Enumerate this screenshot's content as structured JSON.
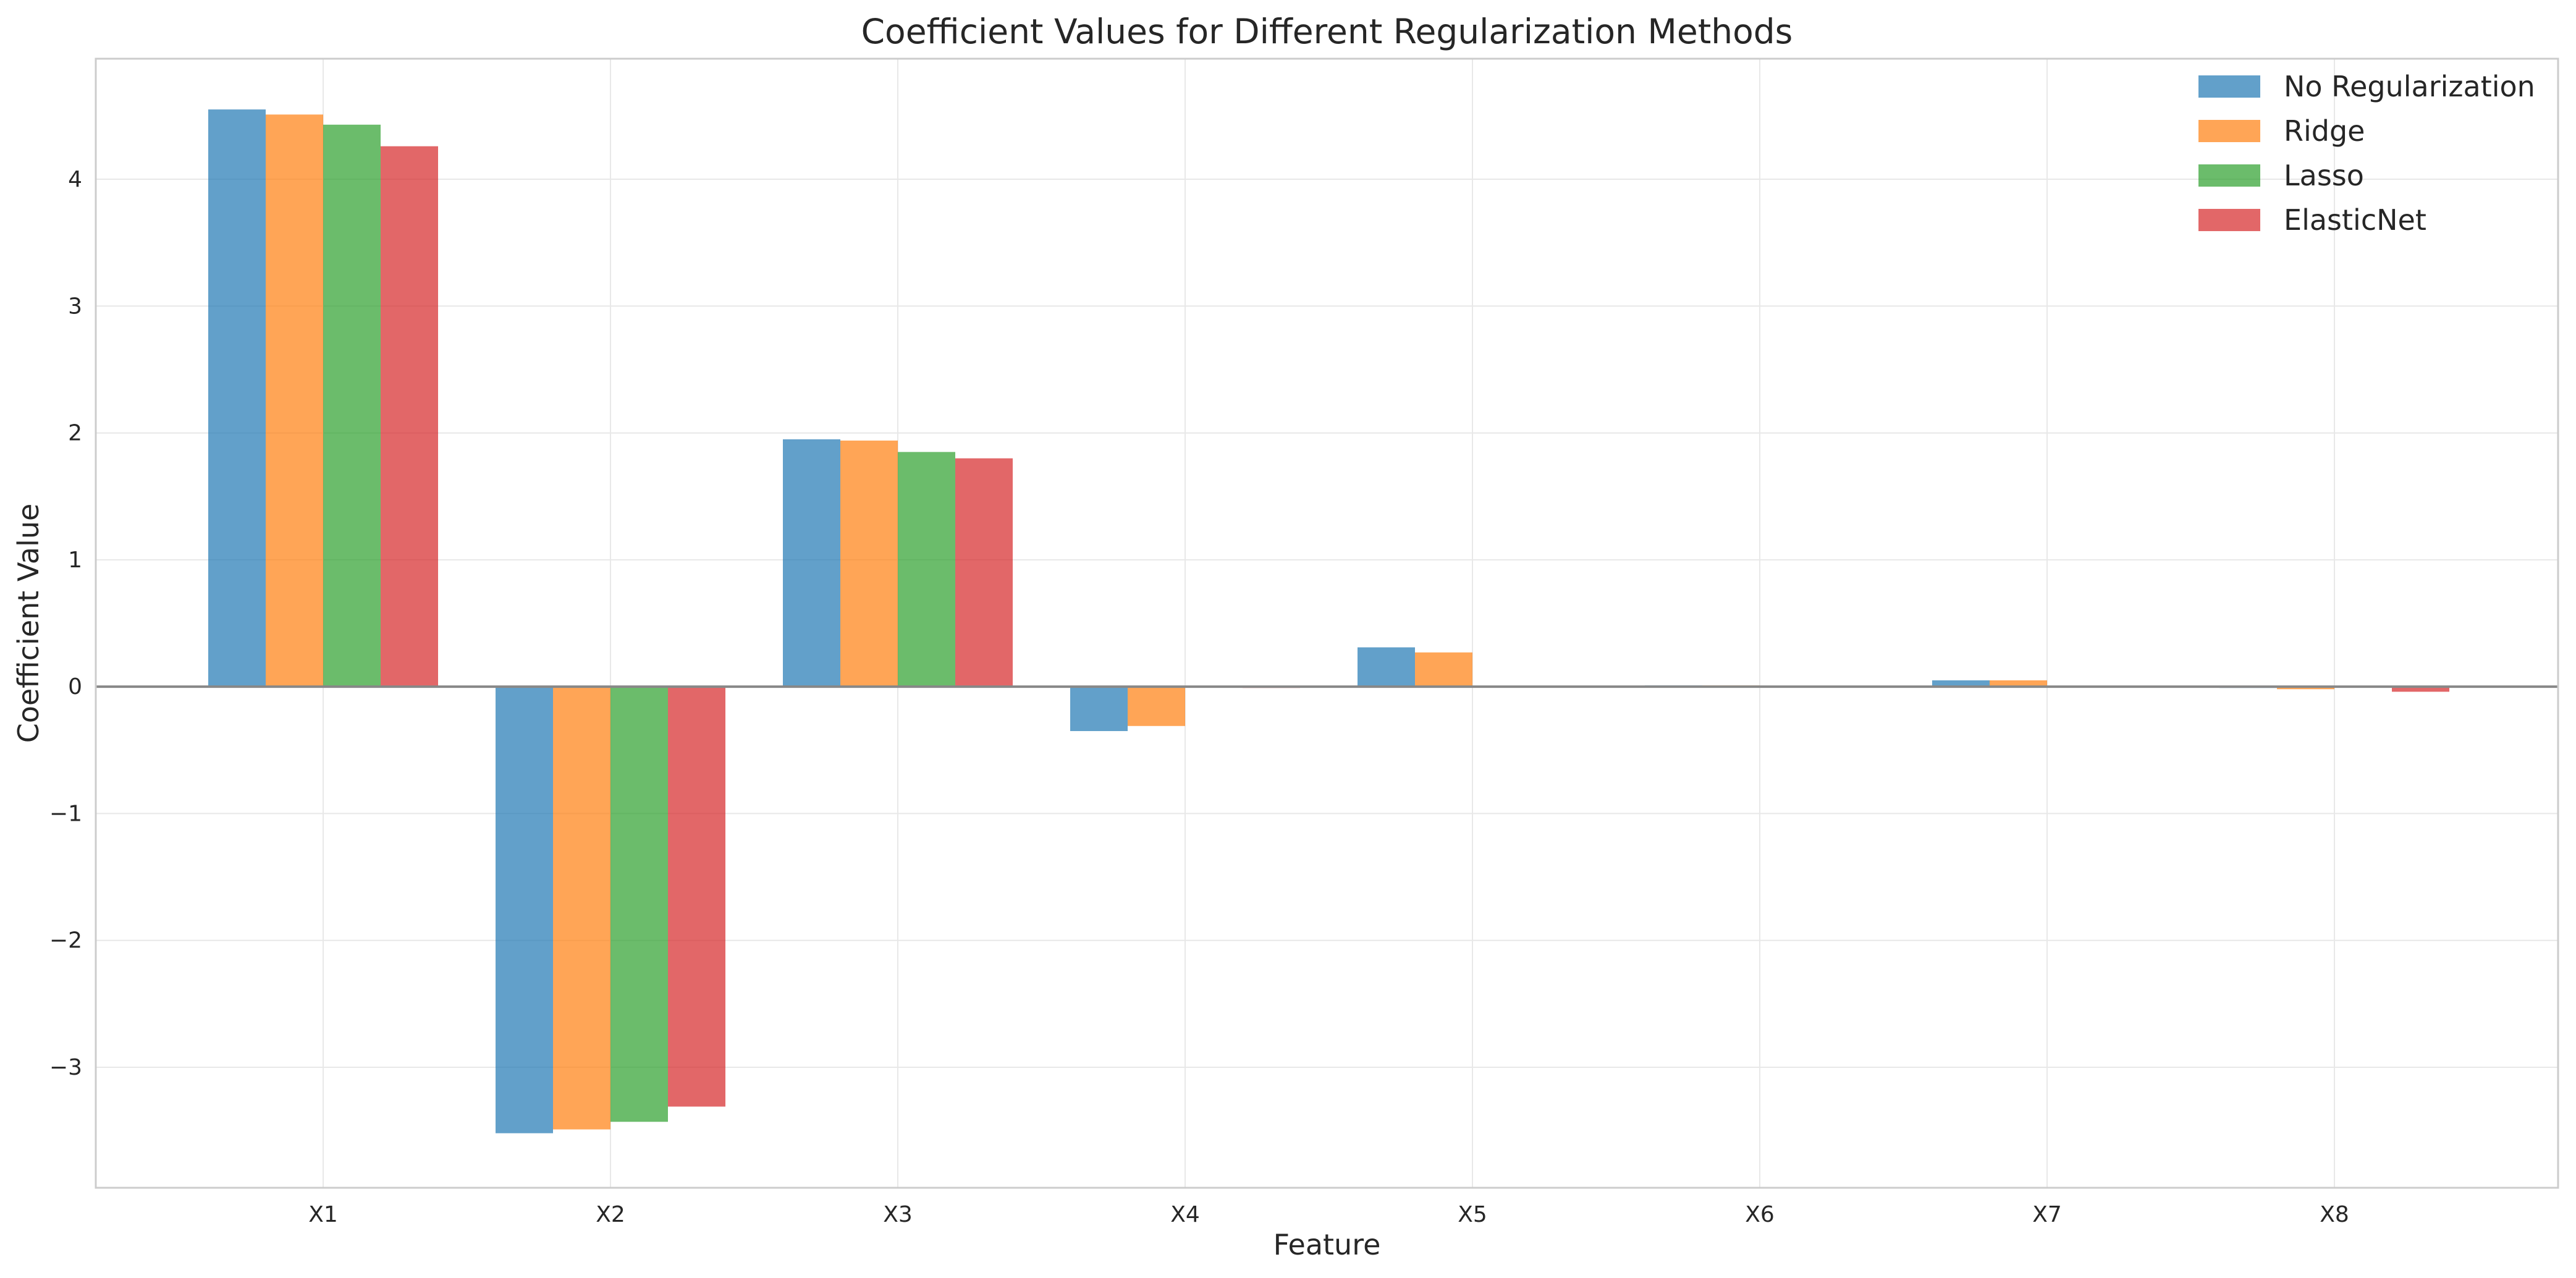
{
  "chart_data": {
    "type": "bar",
    "title": "Coefficient Values for Different Regularization Methods",
    "xlabel": "Feature",
    "ylabel": "Coefficient Value",
    "categories": [
      "X1",
      "X2",
      "X3",
      "X4",
      "X5",
      "X6",
      "X7",
      "X8"
    ],
    "ylim": [
      -3.95,
      4.95
    ],
    "yticks": [
      -3,
      -2,
      -1,
      0,
      1,
      2,
      3,
      4
    ],
    "ytick_labels": [
      "−3",
      "−2",
      "−1",
      "0",
      "1",
      "2",
      "3",
      "4"
    ],
    "grid": true,
    "legend_position": "top-right",
    "series": [
      {
        "name": "No Regularization",
        "color": "#1f77b4",
        "values": [
          4.55,
          -3.52,
          1.95,
          -0.35,
          0.31,
          0.01,
          0.05,
          -0.01
        ]
      },
      {
        "name": "Ridge",
        "color": "#ff7f0e",
        "values": [
          4.51,
          -3.49,
          1.94,
          -0.31,
          0.27,
          0.01,
          0.05,
          -0.02
        ]
      },
      {
        "name": "Lasso",
        "color": "#2ca02c",
        "values": [
          4.43,
          -3.43,
          1.85,
          0.0,
          0.0,
          0.0,
          0.0,
          0.0
        ]
      },
      {
        "name": "ElasticNet",
        "color": "#d62728",
        "values": [
          4.26,
          -3.31,
          1.8,
          -0.01,
          0.0,
          0.0,
          0.0,
          -0.04
        ]
      }
    ]
  }
}
